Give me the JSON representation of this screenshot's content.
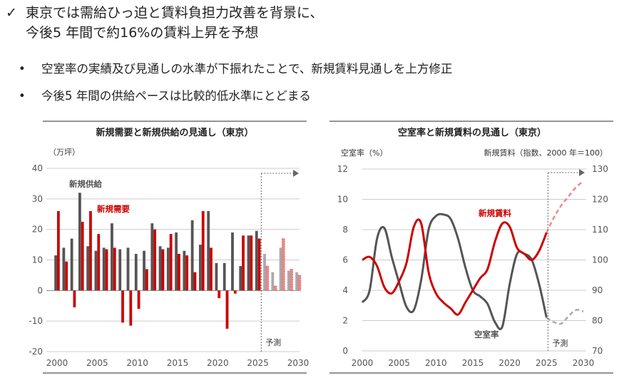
{
  "header": {
    "check_icon": "✓",
    "headline_line1": "東京では需給ひっ迫と賃料負担力改善を背景に、",
    "headline_line2": "今後5 年間で約16%の賃料上昇を予想",
    "bullet_icon": "•",
    "bullets": [
      "空室率の実績及び見通しの水準が下振れたことで、新規賃料見通しを上方修正",
      "今後5 年間の供給ペースは比較的低水準にとどまる"
    ]
  },
  "colors": {
    "supply": "#555555",
    "demand": "#cc0000",
    "forecast_supply": "#aaaaaa",
    "forecast_demand": "#e88a8a",
    "grid": "#cccccc"
  },
  "chart_data": [
    {
      "type": "bar",
      "title": "新規需要と新規供給の見通し（東京）",
      "ylabel": "（万坪）",
      "ylim": [
        -20,
        40
      ],
      "yticks": [
        "40",
        "30",
        "20",
        "10",
        "0",
        "-10",
        "-20"
      ],
      "xticks": [
        "2000",
        "2005",
        "2010",
        "2015",
        "2020",
        "2025",
        "2030"
      ],
      "forecast_label": "予測",
      "forecast_start": 2025.5,
      "years": [
        2000,
        2001,
        2002,
        2003,
        2004,
        2005,
        2006,
        2007,
        2008,
        2009,
        2010,
        2011,
        2012,
        2013,
        2014,
        2015,
        2016,
        2017,
        2018,
        2019,
        2020,
        2021,
        2022,
        2023,
        2024,
        2025,
        2026,
        2027,
        2028,
        2029,
        2030
      ],
      "series": [
        {
          "name": "新規供給",
          "annotation": "新規供給",
          "values": [
            11.5,
            14,
            17,
            32,
            14.5,
            13,
            14,
            22,
            13.5,
            14,
            12,
            13,
            22,
            14.5,
            14,
            19,
            13,
            23,
            15,
            26,
            9,
            9,
            19,
            8,
            18,
            19.5,
            12,
            6,
            14,
            6.5,
            6
          ]
        },
        {
          "name": "新規需要",
          "annotation": "新規需要",
          "values": [
            26,
            9.5,
            -5.5,
            22.5,
            26,
            18.5,
            13.5,
            14,
            -10.5,
            -11.5,
            -6,
            7,
            20,
            13.5,
            18.5,
            12,
            11.5,
            6,
            26,
            14,
            -2.5,
            -12.5,
            -1,
            18,
            18,
            17,
            8,
            1.5,
            17,
            7,
            5
          ]
        }
      ]
    },
    {
      "type": "line",
      "title": "空室率と新規賃料の見通し（東京）",
      "ylabel_left": "空室率（%）",
      "ylabel_right": "新規賃料（指数、2000 年＝100）",
      "ylim_left": [
        0,
        12
      ],
      "ylim_right": [
        70,
        130
      ],
      "yticks_left": [
        "12",
        "10",
        "8",
        "6",
        "4",
        "2",
        "0"
      ],
      "yticks_right": [
        "130",
        "120",
        "110",
        "100",
        "90",
        "80",
        "70"
      ],
      "xticks": [
        "2000",
        "2005",
        "2010",
        "2015",
        "2020",
        "2025",
        "2030"
      ],
      "forecast_label": "予測",
      "forecast_start": 2025,
      "series": [
        {
          "name": "空室率",
          "annotation": "空室率",
          "axis": "left",
          "x": [
            2000,
            2001,
            2002,
            2003,
            2004,
            2005,
            2006,
            2007,
            2008,
            2009,
            2010,
            2011,
            2012,
            2013,
            2014,
            2015,
            2016,
            2017,
            2018,
            2019,
            2020,
            2021,
            2022,
            2023,
            2024,
            2025
          ],
          "values": [
            3.2,
            4,
            7.4,
            8.1,
            6.2,
            4.5,
            2.9,
            2.7,
            4.7,
            8,
            8.9,
            9,
            8.7,
            7.4,
            5.5,
            4,
            3.6,
            3.1,
            1.9,
            1.6,
            4.4,
            6.4,
            6.4,
            6,
            4.4,
            2.2
          ],
          "forecast_x": [
            2025,
            2026,
            2027,
            2028,
            2029,
            2030
          ],
          "forecast": [
            2.2,
            1.9,
            1.8,
            2.3,
            2.7,
            2.6
          ]
        },
        {
          "name": "新規賃料",
          "annotation": "新規賃料",
          "axis": "right",
          "x": [
            2000,
            2001,
            2002,
            2003,
            2004,
            2005,
            2006,
            2007,
            2008,
            2009,
            2010,
            2011,
            2012,
            2013,
            2014,
            2015,
            2016,
            2017,
            2018,
            2019,
            2020,
            2021,
            2022,
            2023,
            2024,
            2025
          ],
          "values": [
            100,
            101,
            98,
            91,
            89,
            93,
            99,
            111,
            112,
            96,
            89,
            86,
            84,
            82,
            86,
            90,
            94,
            97,
            106,
            112,
            111,
            104,
            102,
            100,
            103,
            109
          ],
          "forecast_x": [
            2025,
            2026,
            2027,
            2028,
            2029,
            2030
          ],
          "forecast": [
            109,
            114,
            118,
            121,
            124,
            126
          ]
        }
      ]
    }
  ]
}
